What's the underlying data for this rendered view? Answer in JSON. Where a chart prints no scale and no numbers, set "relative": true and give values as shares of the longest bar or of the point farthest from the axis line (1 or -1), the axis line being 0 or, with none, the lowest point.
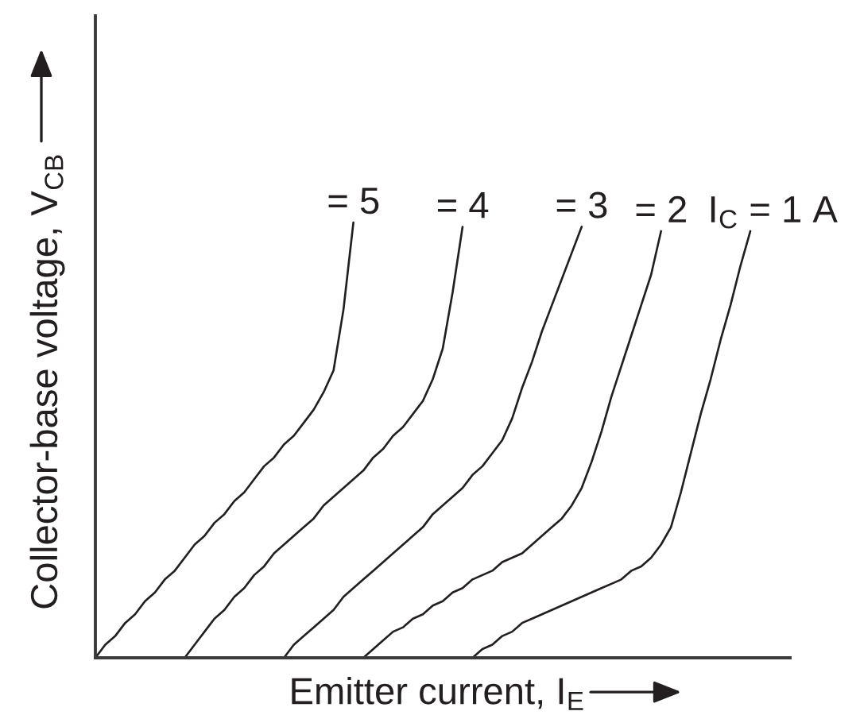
{
  "chart_data": {
    "type": "line",
    "xlabel": "Emitter current, I$_{E}$",
    "ylabel": "Collector-base voltage, V$_{CB}$",
    "relative": true,
    "categories": [
      null,
      null,
      null,
      null,
      null,
      null,
      null,
      null,
      null,
      null,
      null,
      null,
      null,
      null,
      null,
      null,
      null,
      null,
      null,
      null,
      null,
      null,
      null,
      null,
      null,
      null,
      null,
      null,
      null,
      null,
      null,
      null,
      null,
      null,
      null,
      null,
      null,
      null,
      null,
      null,
      null,
      null,
      null,
      null,
      null,
      null,
      null,
      null,
      null,
      null,
      null,
      null,
      null,
      null,
      null,
      null,
      null,
      null,
      null,
      null,
      null,
      null,
      null,
      null,
      null,
      null,
      null,
      null,
      null,
      null,
      null
    ],
    "series": [
      {
        "name": "I$_{C}$ = 1 A",
        "color": "#231f20",
        "values": [
          null,
          null,
          null,
          null,
          null,
          null,
          null,
          null,
          null,
          null,
          null,
          null,
          null,
          null,
          null,
          null,
          null,
          null,
          null,
          null,
          null,
          null,
          null,
          null,
          null,
          null,
          null,
          null,
          null,
          null,
          null,
          null,
          null,
          null,
          null,
          null,
          null,
          null,
          0,
          0.02,
          0.03,
          0.05,
          0.06,
          0.08,
          0.09,
          0.1,
          0.11,
          0.12,
          0.13,
          0.14,
          0.15,
          0.16,
          0.17,
          0.18,
          0.2,
          0.21,
          0.23,
          0.26,
          0.3,
          0.38,
          0.47,
          0.56,
          0.64,
          0.73,
          0.81,
          0.9,
          0.98,
          null,
          null,
          null,
          null
        ]
      },
      {
        "name": "= 2",
        "color": "#231f20",
        "values": [
          null,
          null,
          null,
          null,
          null,
          null,
          null,
          null,
          null,
          null,
          null,
          null,
          null,
          null,
          null,
          null,
          null,
          null,
          null,
          null,
          null,
          null,
          null,
          null,
          null,
          null,
          null,
          0,
          0.02,
          0.04,
          0.06,
          0.07,
          0.09,
          0.1,
          0.12,
          0.13,
          0.15,
          0.16,
          0.18,
          0.19,
          0.2,
          0.22,
          0.23,
          0.24,
          0.26,
          0.28,
          0.3,
          0.32,
          0.35,
          0.39,
          0.45,
          0.52,
          0.6,
          0.67,
          0.74,
          0.81,
          0.88,
          0.98,
          null,
          null,
          null,
          null,
          null,
          null,
          null,
          null,
          null,
          null,
          null,
          null,
          null
        ]
      },
      {
        "name": "= 3",
        "color": "#231f20",
        "values": [
          null,
          null,
          null,
          null,
          null,
          null,
          null,
          null,
          null,
          null,
          null,
          null,
          null,
          null,
          null,
          null,
          null,
          null,
          null,
          0,
          0.03,
          0.05,
          0.07,
          0.09,
          0.11,
          0.14,
          0.16,
          0.18,
          0.2,
          0.22,
          0.24,
          0.26,
          0.28,
          0.3,
          0.33,
          0.35,
          0.37,
          0.39,
          0.42,
          0.44,
          0.47,
          0.5,
          0.55,
          0.62,
          0.68,
          0.75,
          0.81,
          0.87,
          0.93,
          0.99,
          null,
          null,
          null,
          null,
          null,
          null,
          null,
          null,
          null,
          null,
          null,
          null,
          null,
          null,
          null,
          null,
          null,
          null,
          null,
          null,
          null
        ]
      },
      {
        "name": "= 4",
        "color": "#231f20",
        "values": [
          null,
          null,
          null,
          null,
          null,
          null,
          null,
          null,
          null,
          0,
          0.03,
          0.06,
          0.09,
          0.11,
          0.14,
          0.16,
          0.19,
          0.21,
          0.24,
          0.26,
          0.28,
          0.3,
          0.32,
          0.35,
          0.37,
          0.39,
          0.41,
          0.43,
          0.46,
          0.48,
          0.51,
          0.53,
          0.56,
          0.59,
          0.64,
          0.71,
          0.84,
          0.99,
          null,
          null,
          null,
          null,
          null,
          null,
          null,
          null,
          null,
          null,
          null,
          null,
          null,
          null,
          null,
          null,
          null,
          null,
          null,
          null,
          null,
          null,
          null,
          null,
          null,
          null,
          null,
          null,
          null,
          null,
          null,
          null,
          null
        ]
      },
      {
        "name": "= 5",
        "color": "#231f20",
        "values": [
          0,
          0.03,
          0.05,
          0.08,
          0.1,
          0.13,
          0.15,
          0.18,
          0.2,
          0.23,
          0.26,
          0.28,
          0.31,
          0.33,
          0.36,
          0.38,
          0.41,
          0.44,
          0.46,
          0.49,
          0.51,
          0.54,
          0.57,
          0.61,
          0.66,
          0.8,
          1.0,
          null,
          null,
          null,
          null,
          null,
          null,
          null,
          null,
          null,
          null,
          null,
          null,
          null,
          null,
          null,
          null,
          null,
          null,
          null,
          null,
          null,
          null,
          null,
          null,
          null,
          null,
          null,
          null,
          null,
          null,
          null,
          null,
          null,
          null,
          null,
          null,
          null,
          null,
          null,
          null,
          null,
          null,
          null,
          null
        ]
      }
    ]
  }
}
